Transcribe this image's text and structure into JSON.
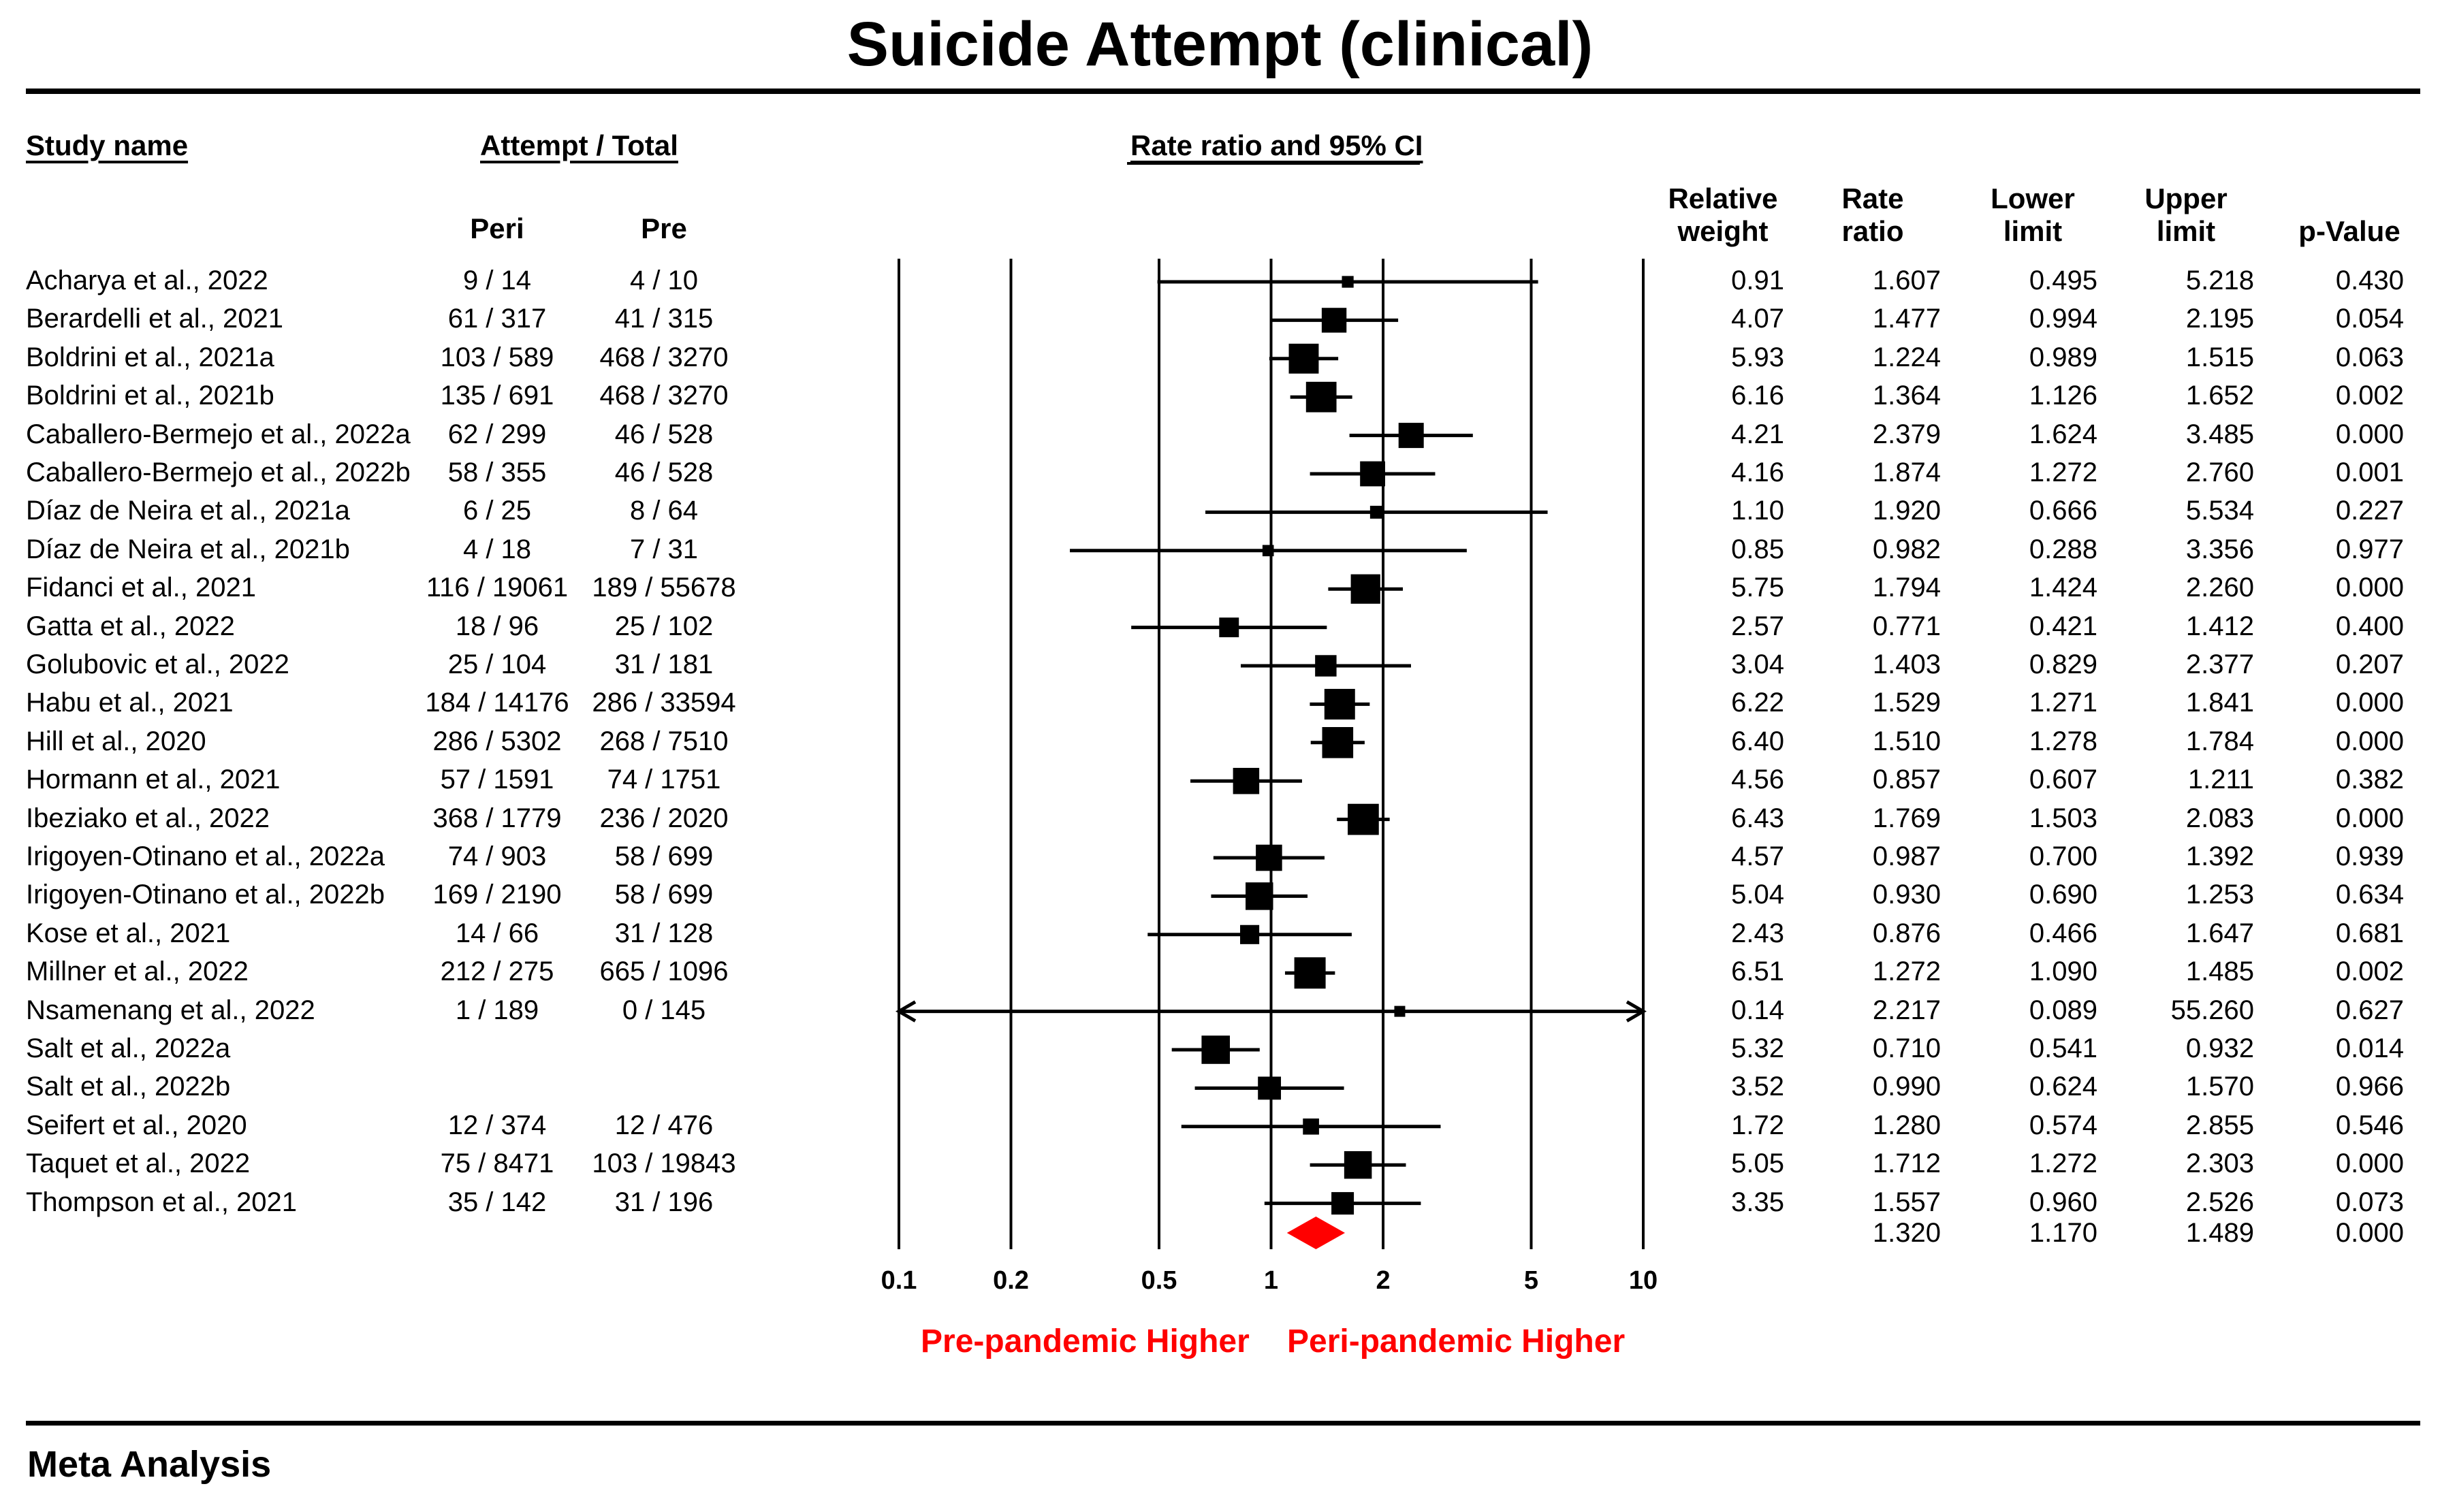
{
  "title": "Suicide Attempt (clinical)",
  "headers": {
    "study_name": "Study name",
    "attempt_total": "Attempt / Total",
    "rate_ratio_ci": "Rate ratio and 95% CI",
    "peri": "Peri",
    "pre": "Pre",
    "relative_weight_1": "Relative",
    "relative_weight_2": "weight",
    "rate_ratio_1": "Rate",
    "rate_ratio_2": "ratio",
    "lower_1": "Lower",
    "lower_2": "limit",
    "upper_1": "Upper",
    "upper_2": "limit",
    "pvalue": "p-Value"
  },
  "rows": [
    {
      "study": "Acharya et al., 2022",
      "peri": "9 / 14",
      "pre": "4 / 10",
      "weight": "0.91",
      "rr": "1.607",
      "lower": "0.495",
      "upper": "5.218",
      "p": "0.430"
    },
    {
      "study": "Berardelli et al., 2021",
      "peri": "61 / 317",
      "pre": "41 / 315",
      "weight": "4.07",
      "rr": "1.477",
      "lower": "0.994",
      "upper": "2.195",
      "p": "0.054"
    },
    {
      "study": "Boldrini et al., 2021a",
      "peri": "103 / 589",
      "pre": "468 / 3270",
      "weight": "5.93",
      "rr": "1.224",
      "lower": "0.989",
      "upper": "1.515",
      "p": "0.063"
    },
    {
      "study": "Boldrini et al., 2021b",
      "peri": "135 / 691",
      "pre": "468 / 3270",
      "weight": "6.16",
      "rr": "1.364",
      "lower": "1.126",
      "upper": "1.652",
      "p": "0.002"
    },
    {
      "study": "Caballero-Bermejo et al., 2022a",
      "peri": "62 / 299",
      "pre": "46 / 528",
      "weight": "4.21",
      "rr": "2.379",
      "lower": "1.624",
      "upper": "3.485",
      "p": "0.000"
    },
    {
      "study": "Caballero-Bermejo et al., 2022b",
      "peri": "58 / 355",
      "pre": "46 / 528",
      "weight": "4.16",
      "rr": "1.874",
      "lower": "1.272",
      "upper": "2.760",
      "p": "0.001"
    },
    {
      "study": "Díaz de Neira et al., 2021a",
      "peri": "6 / 25",
      "pre": "8 / 64",
      "weight": "1.10",
      "rr": "1.920",
      "lower": "0.666",
      "upper": "5.534",
      "p": "0.227"
    },
    {
      "study": "Díaz de Neira et al., 2021b",
      "peri": "4 / 18",
      "pre": "7 / 31",
      "weight": "0.85",
      "rr": "0.982",
      "lower": "0.288",
      "upper": "3.356",
      "p": "0.977"
    },
    {
      "study": "Fidanci et al., 2021",
      "peri": "116 / 19061",
      "pre": "189 / 55678",
      "weight": "5.75",
      "rr": "1.794",
      "lower": "1.424",
      "upper": "2.260",
      "p": "0.000"
    },
    {
      "study": "Gatta et al., 2022",
      "peri": "18 / 96",
      "pre": "25 / 102",
      "weight": "2.57",
      "rr": "0.771",
      "lower": "0.421",
      "upper": "1.412",
      "p": "0.400"
    },
    {
      "study": "Golubovic et al., 2022",
      "peri": "25 / 104",
      "pre": "31 / 181",
      "weight": "3.04",
      "rr": "1.403",
      "lower": "0.829",
      "upper": "2.377",
      "p": "0.207"
    },
    {
      "study": "Habu et al., 2021",
      "peri": "184 / 14176",
      "pre": "286 / 33594",
      "weight": "6.22",
      "rr": "1.529",
      "lower": "1.271",
      "upper": "1.841",
      "p": "0.000"
    },
    {
      "study": "Hill et al., 2020",
      "peri": "286 / 5302",
      "pre": "268 / 7510",
      "weight": "6.40",
      "rr": "1.510",
      "lower": "1.278",
      "upper": "1.784",
      "p": "0.000"
    },
    {
      "study": "Hormann et al., 2021",
      "peri": "57 / 1591",
      "pre": "74 / 1751",
      "weight": "4.56",
      "rr": "0.857",
      "lower": "0.607",
      "upper": "1.211",
      "p": "0.382"
    },
    {
      "study": "Ibeziako et al., 2022",
      "peri": "368 / 1779",
      "pre": "236 / 2020",
      "weight": "6.43",
      "rr": "1.769",
      "lower": "1.503",
      "upper": "2.083",
      "p": "0.000"
    },
    {
      "study": "Irigoyen-Otinano et al., 2022a",
      "peri": "74 / 903",
      "pre": "58 / 699",
      "weight": "4.57",
      "rr": "0.987",
      "lower": "0.700",
      "upper": "1.392",
      "p": "0.939"
    },
    {
      "study": "Irigoyen-Otinano et al., 2022b",
      "peri": "169 / 2190",
      "pre": "58 / 699",
      "weight": "5.04",
      "rr": "0.930",
      "lower": "0.690",
      "upper": "1.253",
      "p": "0.634"
    },
    {
      "study": "Kose et al., 2021",
      "peri": "14 / 66",
      "pre": "31 / 128",
      "weight": "2.43",
      "rr": "0.876",
      "lower": "0.466",
      "upper": "1.647",
      "p": "0.681"
    },
    {
      "study": "Millner et al., 2022",
      "peri": "212 / 275",
      "pre": "665 / 1096",
      "weight": "6.51",
      "rr": "1.272",
      "lower": "1.090",
      "upper": "1.485",
      "p": "0.002"
    },
    {
      "study": "Nsamenang et al., 2022",
      "peri": "1 / 189",
      "pre": "0 / 145",
      "weight": "0.14",
      "rr": "2.217",
      "lower": "0.089",
      "upper": "55.260",
      "p": "0.627"
    },
    {
      "study": "Salt et al., 2022a",
      "peri": "",
      "pre": "",
      "weight": "5.32",
      "rr": "0.710",
      "lower": "0.541",
      "upper": "0.932",
      "p": "0.014"
    },
    {
      "study": "Salt et al., 2022b",
      "peri": "",
      "pre": "",
      "weight": "3.52",
      "rr": "0.990",
      "lower": "0.624",
      "upper": "1.570",
      "p": "0.966"
    },
    {
      "study": "Seifert et al., 2020",
      "peri": "12 / 374",
      "pre": "12 / 476",
      "weight": "1.72",
      "rr": "1.280",
      "lower": "0.574",
      "upper": "2.855",
      "p": "0.546"
    },
    {
      "study": "Taquet et al., 2022",
      "peri": "75 / 8471",
      "pre": "103 / 19843",
      "weight": "5.05",
      "rr": "1.712",
      "lower": "1.272",
      "upper": "2.303",
      "p": "0.000"
    },
    {
      "study": "Thompson et al., 2021",
      "peri": "35 / 142",
      "pre": "31 / 196",
      "weight": "3.35",
      "rr": "1.557",
      "lower": "0.960",
      "upper": "2.526",
      "p": "0.073"
    }
  ],
  "summary": {
    "rr": "1.320",
    "lower": "1.170",
    "upper": "1.489",
    "p": "0.000"
  },
  "axis_ticks": [
    "0.1",
    "0.2",
    "0.5",
    "1",
    "2",
    "5",
    "10"
  ],
  "footer_left": "Pre-pandemic Higher",
  "footer_right": "Peri-pandemic Higher",
  "meta_label": "Meta Analysis",
  "colors": {
    "summary": "#ff0000",
    "marker": "#000000",
    "footer": "#ff0000"
  },
  "chart_data": {
    "type": "forest",
    "title": "Suicide Attempt (clinical)",
    "xlabel": "Rate ratio and 95% CI",
    "xscale": "log",
    "xlim": [
      0.1,
      10
    ],
    "xticks": [
      0.1,
      0.2,
      0.5,
      1,
      2,
      5,
      10
    ],
    "categories": [
      "Acharya et al., 2022",
      "Berardelli et al., 2021",
      "Boldrini et al., 2021a",
      "Boldrini et al., 2021b",
      "Caballero-Bermejo et al., 2022a",
      "Caballero-Bermejo et al., 2022b",
      "Díaz de Neira et al., 2021a",
      "Díaz de Neira et al., 2021b",
      "Fidanci et al., 2021",
      "Gatta et al., 2022",
      "Golubovic et al., 2022",
      "Habu et al., 2021",
      "Hill et al., 2020",
      "Hormann et al., 2021",
      "Ibeziako et al., 2022",
      "Irigoyen-Otinano et al., 2022a",
      "Irigoyen-Otinano et al., 2022b",
      "Kose et al., 2021",
      "Millner et al., 2022",
      "Nsamenang et al., 2022",
      "Salt et al., 2022a",
      "Salt et al., 2022b",
      "Seifert et al., 2020",
      "Taquet et al., 2022",
      "Thompson et al., 2021"
    ],
    "rate_ratio": [
      1.607,
      1.477,
      1.224,
      1.364,
      2.379,
      1.874,
      1.92,
      0.982,
      1.794,
      0.771,
      1.403,
      1.529,
      1.51,
      0.857,
      1.769,
      0.987,
      0.93,
      0.876,
      1.272,
      2.217,
      0.71,
      0.99,
      1.28,
      1.712,
      1.557
    ],
    "lower": [
      0.495,
      0.994,
      0.989,
      1.126,
      1.624,
      1.272,
      0.666,
      0.288,
      1.424,
      0.421,
      0.829,
      1.271,
      1.278,
      0.607,
      1.503,
      0.7,
      0.69,
      0.466,
      1.09,
      0.089,
      0.541,
      0.624,
      0.574,
      1.272,
      0.96
    ],
    "upper": [
      5.218,
      2.195,
      1.515,
      1.652,
      3.485,
      2.76,
      5.534,
      3.356,
      2.26,
      1.412,
      2.377,
      1.841,
      1.784,
      1.211,
      2.083,
      1.392,
      1.253,
      1.647,
      1.485,
      55.26,
      0.932,
      1.57,
      2.855,
      2.303,
      2.526
    ],
    "weight": [
      0.91,
      4.07,
      5.93,
      6.16,
      4.21,
      4.16,
      1.1,
      0.85,
      5.75,
      2.57,
      3.04,
      6.22,
      6.4,
      4.56,
      6.43,
      4.57,
      5.04,
      2.43,
      6.51,
      0.14,
      5.32,
      3.52,
      1.72,
      5.05,
      3.35
    ],
    "summary": {
      "rate_ratio": 1.32,
      "lower": 1.17,
      "upper": 1.489
    },
    "annotations": [
      "Pre-pandemic Higher",
      "Peri-pandemic Higher"
    ]
  }
}
